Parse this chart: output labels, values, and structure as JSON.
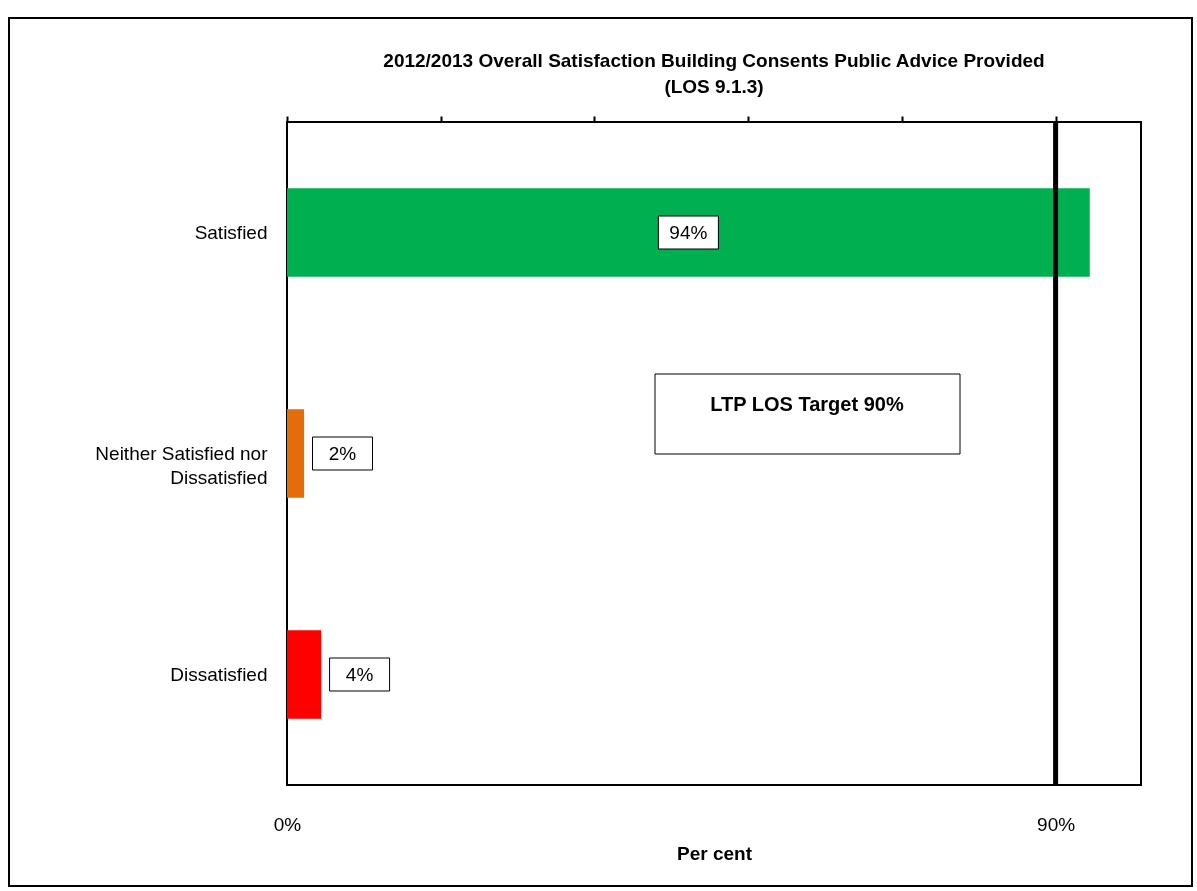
{
  "chart_data": {
    "type": "bar",
    "orientation": "horizontal",
    "title": "2012/2013 Overall Satisfaction Building Consents Public Advice Provided (LOS 9.1.3)",
    "xlabel": "Per cent",
    "categories": [
      "Satisfied",
      "Neither Satisfied nor Dissatisfied",
      "Dissatisfied"
    ],
    "values": [
      94,
      2,
      4
    ],
    "colors": [
      "#00b050",
      "#e46c0a",
      "#ff0000"
    ],
    "value_labels": [
      "94%",
      "2%",
      "4%"
    ],
    "xlim": [
      0,
      100
    ],
    "xticks": [
      {
        "value": 0,
        "label": "0%"
      },
      {
        "value": 18,
        "label": null
      },
      {
        "value": 36,
        "label": null
      },
      {
        "value": 54,
        "label": null
      },
      {
        "value": 72,
        "label": null
      },
      {
        "value": 90,
        "label": "90%"
      }
    ],
    "ref_lines": [
      {
        "axis": "x",
        "value": 90,
        "label": "LTP LOS Target 90%",
        "color": "#000000"
      }
    ],
    "grid": false
  }
}
